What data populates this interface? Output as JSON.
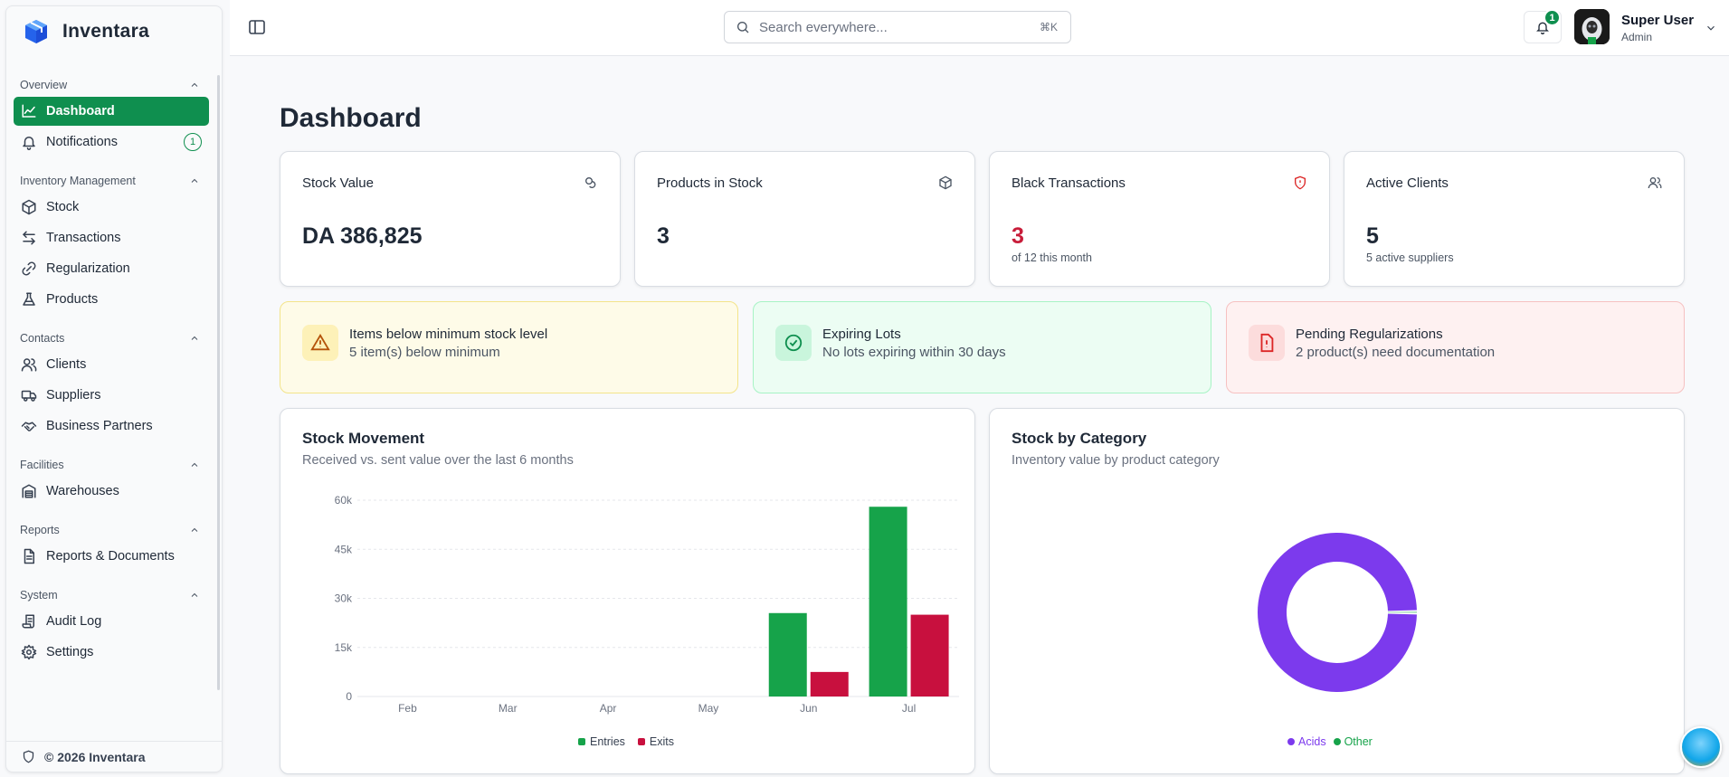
{
  "app": {
    "name": "Inventara",
    "footer": "© 2026 Inventara"
  },
  "search": {
    "placeholder": "Search everywhere...",
    "shortcut": "⌘K"
  },
  "notifications_count": "1",
  "user": {
    "name": "Super User",
    "role": "Admin"
  },
  "sidebar": {
    "sections": [
      {
        "title": "Overview",
        "items": [
          {
            "label": "Dashboard",
            "icon": "chart-line-icon",
            "active": true
          },
          {
            "label": "Notifications",
            "icon": "bell-icon",
            "badge": "1"
          }
        ]
      },
      {
        "title": "Inventory Management",
        "items": [
          {
            "label": "Stock",
            "icon": "box-icon"
          },
          {
            "label": "Transactions",
            "icon": "arrows-left-right-icon"
          },
          {
            "label": "Regularization",
            "icon": "link-icon"
          },
          {
            "label": "Products",
            "icon": "flask-icon"
          }
        ]
      },
      {
        "title": "Contacts",
        "items": [
          {
            "label": "Clients",
            "icon": "users-icon"
          },
          {
            "label": "Suppliers",
            "icon": "truck-icon"
          },
          {
            "label": "Business Partners",
            "icon": "handshake-icon"
          }
        ]
      },
      {
        "title": "Facilities",
        "items": [
          {
            "label": "Warehouses",
            "icon": "warehouse-icon"
          }
        ]
      },
      {
        "title": "Reports",
        "items": [
          {
            "label": "Reports & Documents",
            "icon": "file-text-icon"
          }
        ]
      },
      {
        "title": "System",
        "items": [
          {
            "label": "Audit Log",
            "icon": "scroll-icon"
          },
          {
            "label": "Settings",
            "icon": "gear-icon"
          }
        ]
      }
    ]
  },
  "page": {
    "title": "Dashboard"
  },
  "stats": [
    {
      "title": "Stock Value",
      "value": "DA 386,825",
      "sub": "",
      "icon": "coins-icon"
    },
    {
      "title": "Products in Stock",
      "value": "3",
      "sub": "",
      "icon": "package-icon"
    },
    {
      "title": "Black Transactions",
      "value": "3",
      "sub": "of 12 this month",
      "icon": "shield-alert-icon",
      "value_color": "#c81d3a"
    },
    {
      "title": "Active Clients",
      "value": "5",
      "sub": "5 active suppliers",
      "icon": "users-icon"
    }
  ],
  "alerts": [
    {
      "title": "Items below minimum stock level",
      "sub": "5 item(s) below minimum",
      "icon": "warning-triangle-icon",
      "bg": "#fefbe8",
      "border": "#f3e48a",
      "accent": "#d97706"
    },
    {
      "title": "Expiring Lots",
      "sub": "No lots expiring within 30 days",
      "icon": "check-circle-icon",
      "bg": "#ecfdf3",
      "border": "#a7f3c5",
      "accent": "#0f8f4f"
    },
    {
      "title": "Pending Regularizations",
      "sub": "2 product(s) need documentation",
      "icon": "file-alert-icon",
      "bg": "#fef1f1",
      "border": "#f6c1c1",
      "accent": "#dc2626"
    }
  ],
  "stock_movement": {
    "title": "Stock Movement",
    "subtitle": "Received vs. sent value over the last 6 months",
    "chart_data": {
      "type": "bar",
      "categories": [
        "Feb",
        "Mar",
        "Apr",
        "May",
        "Jun",
        "Jul"
      ],
      "series": [
        {
          "name": "Entries",
          "color": "#16a34a",
          "values": [
            0,
            0,
            0,
            0,
            25500,
            58000
          ]
        },
        {
          "name": "Exits",
          "color": "#c8103e",
          "values": [
            0,
            0,
            0,
            0,
            7500,
            25000
          ]
        }
      ],
      "yticks": [
        "0",
        "15k",
        "30k",
        "45k",
        "60k"
      ],
      "ylim": [
        0,
        60000
      ],
      "legend": "bottom"
    }
  },
  "stock_by_category": {
    "title": "Stock by Category",
    "subtitle": "Inventory value by product category",
    "chart_data": {
      "type": "pie",
      "donut": true,
      "labels": [
        "Acids",
        "Other"
      ],
      "values": [
        99.5,
        0.5
      ],
      "colors": [
        "#7c3aed",
        "#16a34a"
      ],
      "legend": "bottom"
    }
  }
}
